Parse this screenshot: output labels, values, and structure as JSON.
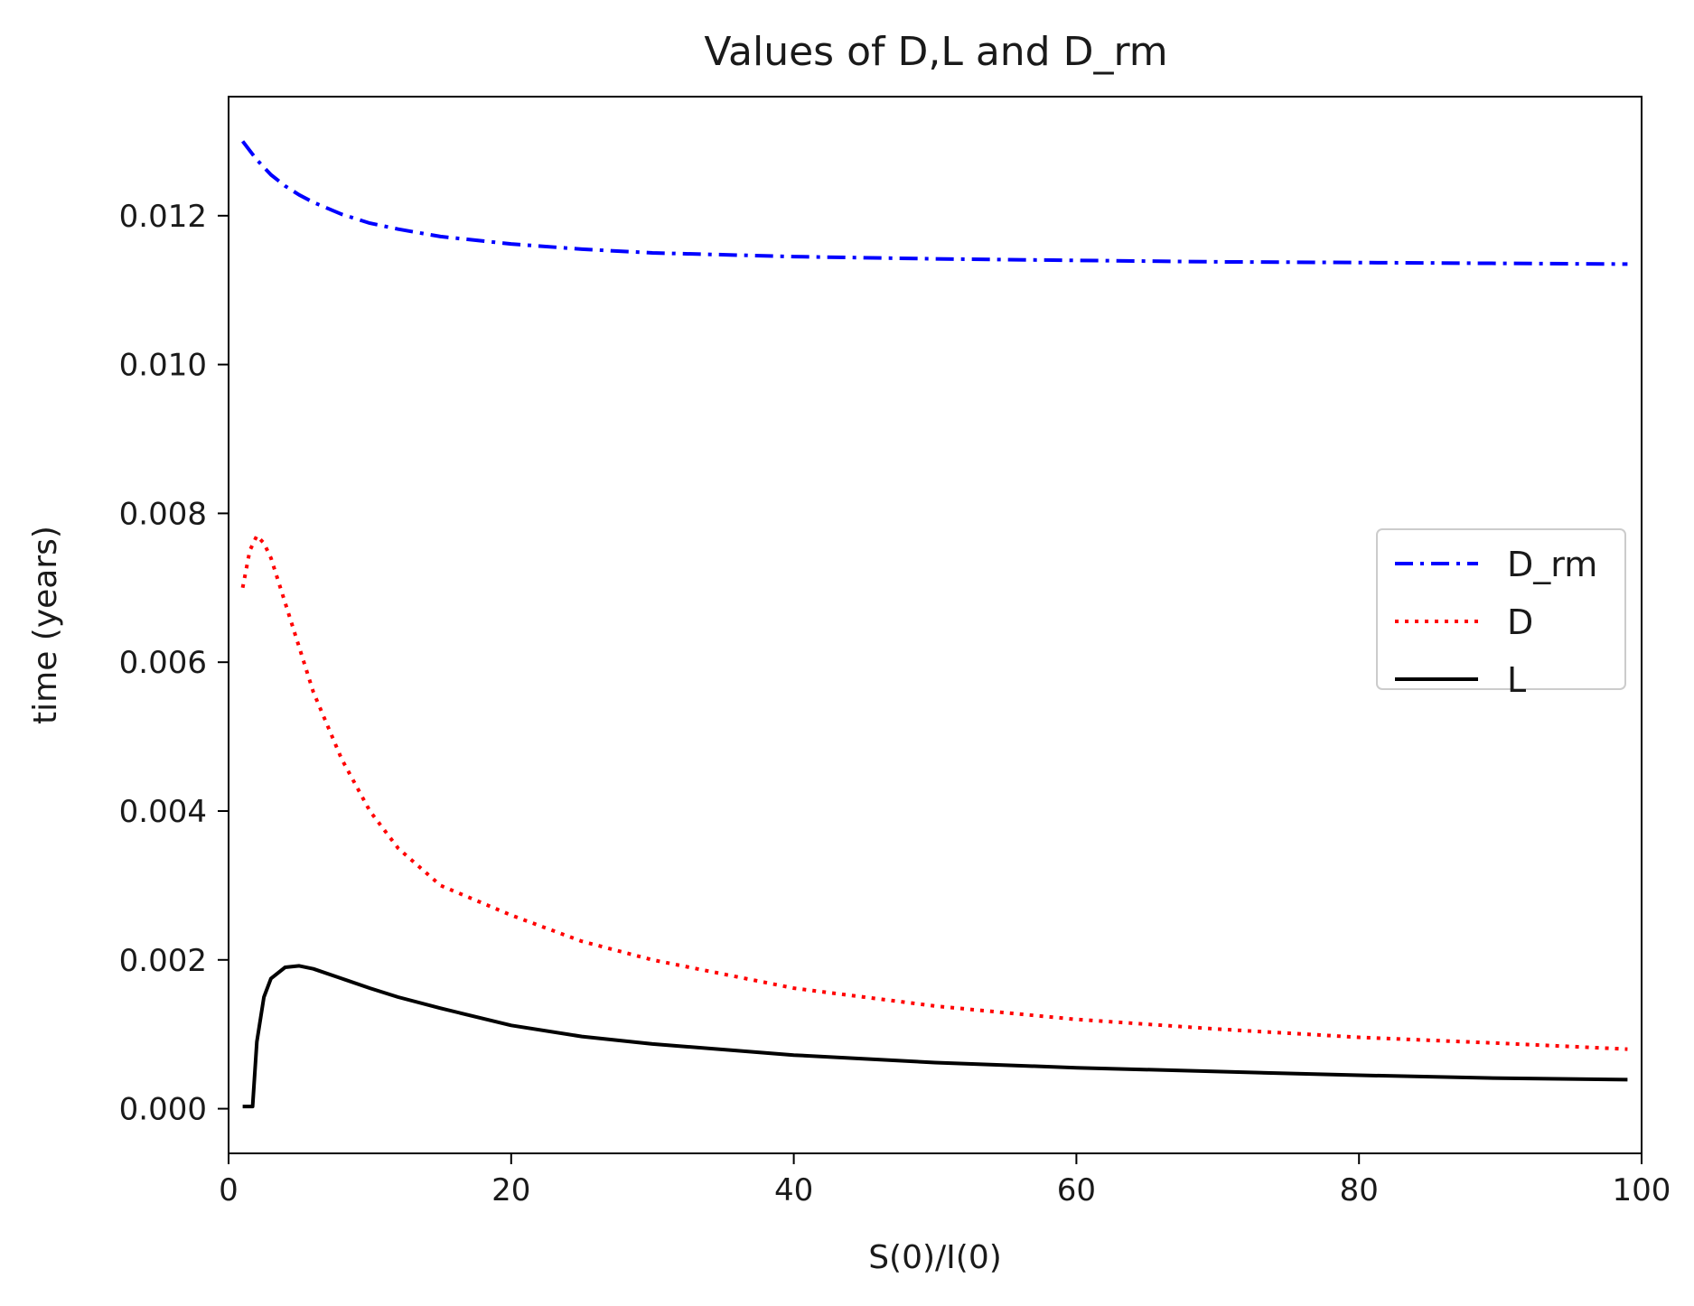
{
  "chart_data": {
    "type": "line",
    "title": "Values of D,L and D_rm",
    "xlabel": "S(0)/I(0)",
    "ylabel": "time (years)",
    "xlim": [
      0,
      100
    ],
    "ylim": [
      -0.0006,
      0.0136
    ],
    "xticks": [
      0,
      20,
      40,
      60,
      80,
      100
    ],
    "xtick_labels": [
      "0",
      "20",
      "40",
      "60",
      "80",
      "100"
    ],
    "yticks": [
      0.0,
      0.002,
      0.004,
      0.006,
      0.008,
      0.01,
      0.012
    ],
    "ytick_labels": [
      "0.000",
      "0.002",
      "0.004",
      "0.006",
      "0.008",
      "0.010",
      "0.012"
    ],
    "grid": false,
    "legend_position": "center-right",
    "series": [
      {
        "name": "D_rm",
        "color": "#0000ff",
        "style": "dashdot",
        "x": [
          1,
          2,
          3,
          4,
          5,
          6,
          8,
          10,
          12,
          15,
          20,
          25,
          30,
          40,
          50,
          60,
          70,
          80,
          90,
          99
        ],
        "y": [
          0.013,
          0.01275,
          0.01255,
          0.0124,
          0.01228,
          0.01218,
          0.01202,
          0.0119,
          0.01182,
          0.01172,
          0.01162,
          0.01155,
          0.0115,
          0.01145,
          0.01142,
          0.0114,
          0.01138,
          0.01137,
          0.01136,
          0.01135
        ]
      },
      {
        "name": "D",
        "color": "#ff0000",
        "style": "dotted",
        "x": [
          1,
          1.5,
          2,
          2.5,
          3,
          4,
          5,
          6,
          8,
          10,
          12,
          15,
          20,
          25,
          30,
          40,
          50,
          60,
          70,
          80,
          90,
          99
        ],
        "y": [
          0.007,
          0.0075,
          0.0077,
          0.0076,
          0.0074,
          0.0068,
          0.0062,
          0.0056,
          0.0047,
          0.004,
          0.0035,
          0.003,
          0.0026,
          0.00225,
          0.002,
          0.00162,
          0.00138,
          0.0012,
          0.00107,
          0.00096,
          0.00088,
          0.0008
        ]
      },
      {
        "name": "L",
        "color": "#000000",
        "style": "solid",
        "x": [
          1,
          1.7,
          2,
          2.5,
          3,
          4,
          5,
          6,
          8,
          10,
          12,
          15,
          20,
          25,
          30,
          40,
          50,
          60,
          70,
          80,
          90,
          99
        ],
        "y": [
          3e-05,
          3e-05,
          0.0009,
          0.0015,
          0.00175,
          0.0019,
          0.00192,
          0.00188,
          0.00175,
          0.00162,
          0.0015,
          0.00135,
          0.00112,
          0.00097,
          0.00087,
          0.00072,
          0.00062,
          0.00055,
          0.0005,
          0.00045,
          0.00041,
          0.00039
        ]
      }
    ]
  }
}
